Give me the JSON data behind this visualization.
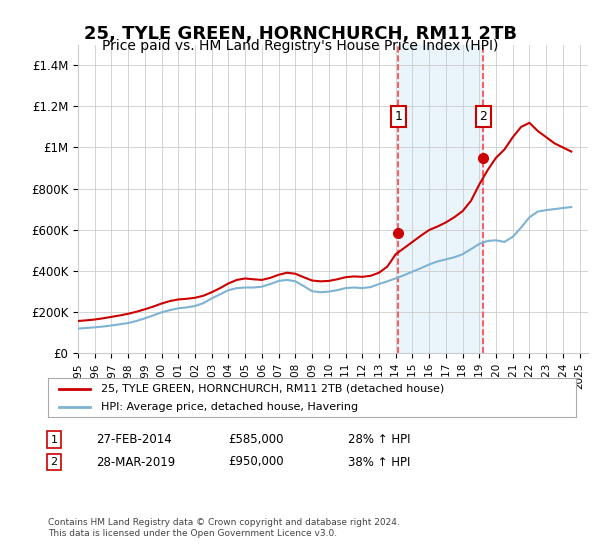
{
  "title": "25, TYLE GREEN, HORNCHURCH, RM11 2TB",
  "subtitle": "Price paid vs. HM Land Registry's House Price Index (HPI)",
  "title_fontsize": 13,
  "subtitle_fontsize": 10,
  "background_color": "#ffffff",
  "plot_bg_color": "#ffffff",
  "grid_color": "#cccccc",
  "ylim": [
    0,
    1500000
  ],
  "yticks": [
    0,
    200000,
    400000,
    600000,
    800000,
    1000000,
    1200000,
    1400000
  ],
  "ytick_labels": [
    "£0",
    "£200K",
    "£400K",
    "£600K",
    "£800K",
    "£1M",
    "£1.2M",
    "£1.4M"
  ],
  "xticks": [
    1995,
    1996,
    1997,
    1998,
    1999,
    2000,
    2001,
    2002,
    2003,
    2004,
    2005,
    2006,
    2007,
    2008,
    2009,
    2010,
    2011,
    2012,
    2013,
    2014,
    2015,
    2016,
    2017,
    2018,
    2019,
    2020,
    2021,
    2022,
    2023,
    2024,
    2025
  ],
  "hpi_color": "#7fb3d3",
  "price_color": "#cc0000",
  "marker_color_1": "#cc0000",
  "marker_color_2": "#cc0000",
  "vline_color": "#ff4444",
  "shade_color": "#d6eaf8",
  "annotation_box_color": "#ffffff",
  "annotation_border_color": "#cc0000",
  "sale1_x": 2014.15,
  "sale1_y": 585000,
  "sale1_label": "1",
  "sale2_x": 2019.25,
  "sale2_y": 950000,
  "sale2_label": "2",
  "legend_line1": "25, TYLE GREEN, HORNCHURCH, RM11 2TB (detached house)",
  "legend_line2": "HPI: Average price, detached house, Havering",
  "table_row1": [
    "1",
    "27-FEB-2014",
    "£585,000",
    "28% ↑ HPI"
  ],
  "table_row2": [
    "2",
    "28-MAR-2019",
    "£950,000",
    "38% ↑ HPI"
  ],
  "footer": "Contains HM Land Registry data © Crown copyright and database right 2024.\nThis data is licensed under the Open Government Licence v3.0.",
  "hpi_years": [
    1995,
    1995.5,
    1996,
    1996.5,
    1997,
    1997.5,
    1998,
    1998.5,
    1999,
    1999.5,
    2000,
    2000.5,
    2001,
    2001.5,
    2002,
    2002.5,
    2003,
    2003.5,
    2004,
    2004.5,
    2005,
    2005.5,
    2006,
    2006.5,
    2007,
    2007.5,
    2008,
    2008.5,
    2009,
    2009.5,
    2010,
    2010.5,
    2011,
    2011.5,
    2012,
    2012.5,
    2013,
    2013.5,
    2014,
    2014.5,
    2015,
    2015.5,
    2016,
    2016.5,
    2017,
    2017.5,
    2018,
    2018.5,
    2019,
    2019.5,
    2020,
    2020.5,
    2021,
    2021.5,
    2022,
    2022.5,
    2023,
    2023.5,
    2024,
    2024.5
  ],
  "hpi_values": [
    118000,
    121000,
    124000,
    128000,
    133000,
    139000,
    145000,
    155000,
    168000,
    182000,
    197000,
    208000,
    217000,
    221000,
    228000,
    242000,
    265000,
    285000,
    305000,
    315000,
    318000,
    318000,
    322000,
    335000,
    350000,
    355000,
    348000,
    325000,
    300000,
    295000,
    298000,
    305000,
    315000,
    318000,
    315000,
    320000,
    335000,
    348000,
    362000,
    378000,
    395000,
    412000,
    430000,
    445000,
    455000,
    465000,
    480000,
    505000,
    530000,
    545000,
    548000,
    540000,
    565000,
    610000,
    660000,
    688000,
    695000,
    700000,
    705000,
    710000
  ],
  "price_years": [
    1995,
    1995.5,
    1996,
    1996.5,
    1997,
    1997.5,
    1998,
    1998.5,
    1999,
    1999.5,
    2000,
    2000.5,
    2001,
    2001.5,
    2002,
    2002.5,
    2003,
    2003.5,
    2004,
    2004.5,
    2005,
    2005.5,
    2006,
    2006.5,
    2007,
    2007.5,
    2008,
    2008.5,
    2009,
    2009.5,
    2010,
    2010.5,
    2011,
    2011.5,
    2012,
    2012.5,
    2013,
    2013.5,
    2014,
    2014.5,
    2015,
    2015.5,
    2016,
    2016.5,
    2017,
    2017.5,
    2018,
    2018.5,
    2019,
    2019.5,
    2020,
    2020.5,
    2021,
    2021.5,
    2022,
    2022.5,
    2023,
    2023.5,
    2024,
    2024.5
  ],
  "price_values": [
    155000,
    158000,
    162000,
    168000,
    175000,
    182000,
    190000,
    200000,
    212000,
    225000,
    240000,
    252000,
    260000,
    263000,
    268000,
    278000,
    295000,
    315000,
    338000,
    355000,
    362000,
    358000,
    355000,
    365000,
    380000,
    390000,
    385000,
    368000,
    352000,
    348000,
    350000,
    358000,
    368000,
    372000,
    370000,
    375000,
    390000,
    420000,
    480000,
    510000,
    540000,
    570000,
    598000,
    615000,
    635000,
    660000,
    690000,
    740000,
    820000,
    890000,
    950000,
    990000,
    1050000,
    1100000,
    1120000,
    1080000,
    1050000,
    1020000,
    1000000,
    980000
  ]
}
